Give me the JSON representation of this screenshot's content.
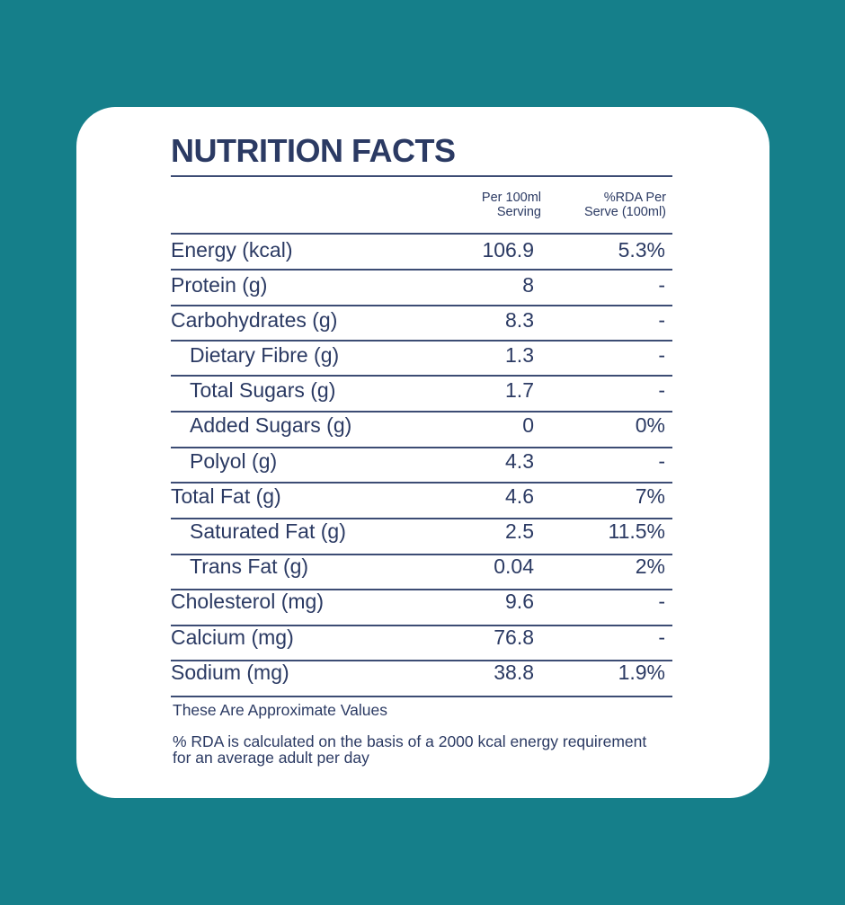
{
  "title": "NUTRITION FACTS",
  "header": {
    "per_serving": "Per 100ml Serving",
    "per_serving_line1": "Per 100ml",
    "per_serving_line2": "Serving",
    "rda_line1": "%RDA Per",
    "rda_line2": "Serve (100ml)"
  },
  "rows": [
    {
      "name": "Energy (kcal)",
      "per": "106.9",
      "rda": "5.3%"
    },
    {
      "name": "Protein (g)",
      "per": "8",
      "rda": "-"
    },
    {
      "name": "Carbohydrates (g)",
      "per": "8.3",
      "rda": "-"
    },
    {
      "name": "Dietary Fibre (g)",
      "per": "1.3",
      "rda": "-"
    },
    {
      "name": "Total Sugars (g)",
      "per": "1.7",
      "rda": "-"
    },
    {
      "name": "Added Sugars (g)",
      "per": "0",
      "rda": "0%"
    },
    {
      "name": "Polyol (g)",
      "per": "4.3",
      "rda": "-"
    },
    {
      "name": "Total Fat (g)",
      "per": "4.6",
      "rda": "7%"
    },
    {
      "name": "Saturated Fat (g)",
      "per": "2.5",
      "rda": "11.5%"
    },
    {
      "name": "Trans Fat (g)",
      "per": "0.04",
      "rda": "2%"
    },
    {
      "name": "Cholesterol (mg)",
      "per": "9.6",
      "rda": "-"
    },
    {
      "name": "Calcium (mg)",
      "per": "76.8",
      "rda": "-"
    },
    {
      "name": "Sodium (mg)",
      "per": "38.8",
      "rda": "1.9%"
    }
  ],
  "notes": {
    "approx": "These Are Approximate Values",
    "rda_basis": "% RDA is calculated on the basis of a 2000 kcal energy requirement for an average adult per day"
  },
  "colors": {
    "background": "#157f8a",
    "card": "#ffffff",
    "text": "#2b3a63"
  }
}
